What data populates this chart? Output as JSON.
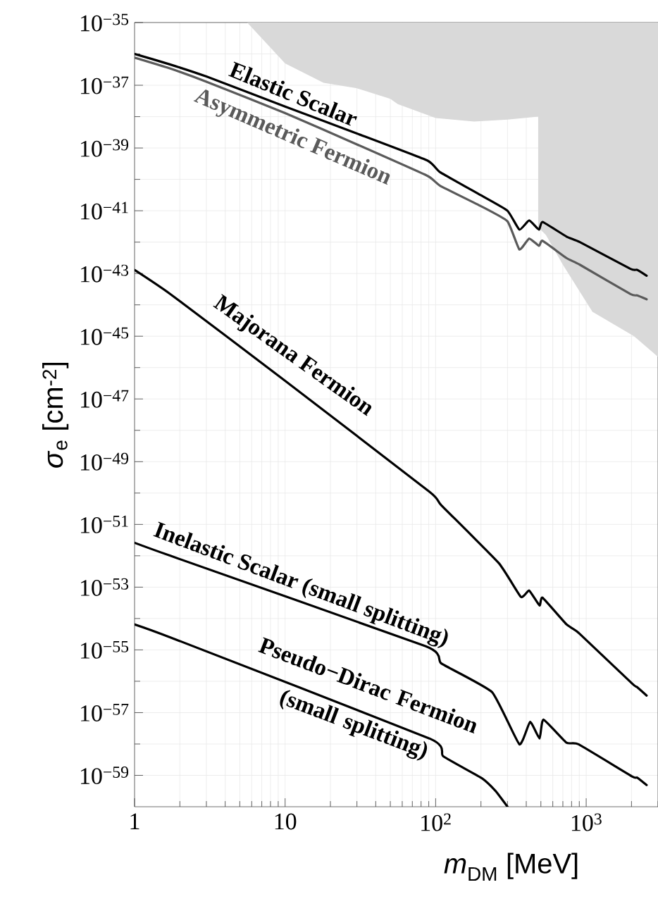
{
  "chart_data": {
    "type": "line",
    "xlabel": "*m*$_{DM}$  [MeV]",
    "ylabel": "*σ*$_{e}$  [cm$^{-2}$]",
    "log": "xy",
    "grid": true,
    "xlim": [
      1,
      3000
    ],
    "ylim": [
      1e-60,
      1e-35
    ],
    "xticks": [
      1,
      10,
      {
        "value": 100,
        "label": "10$^{2}$"
      },
      {
        "value": 1000,
        "label": "10$^{3}$"
      }
    ],
    "yticks": [
      {
        "value": 1e-35,
        "label": "10$^{−35}$"
      },
      {
        "value": 1e-37,
        "label": "10$^{−37}$"
      },
      {
        "value": 1e-39,
        "label": "10$^{−39}$"
      },
      {
        "value": 1e-41,
        "label": "10$^{−41}$"
      },
      {
        "value": 1e-43,
        "label": "10$^{−43}$"
      },
      {
        "value": 1e-45,
        "label": "10$^{−45}$"
      },
      {
        "value": 1e-47,
        "label": "10$^{−47}$"
      },
      {
        "value": 1e-49,
        "label": "10$^{−49}$"
      },
      {
        "value": 1e-51,
        "label": "10$^{−51}$"
      },
      {
        "value": 1e-53,
        "label": "10$^{−53}$"
      },
      {
        "value": 1e-55,
        "label": "10$^{−55}$"
      },
      {
        "value": 1e-57,
        "label": "10$^{−57}$"
      },
      {
        "value": 1e-59,
        "label": "10$^{−59}$"
      }
    ],
    "series": [
      {
        "type": "area",
        "color": "#d9d9d9",
        "x": [
          5.6,
          10,
          18,
          30,
          50,
          56,
          100,
          180,
          300,
          480,
          480,
          540,
          700,
          1100,
          2080,
          3000,
          3000
        ],
        "values": [
          1e-35,
          5e-37,
          1.2e-37,
          8e-38,
          3.7e-38,
          2.5e-38,
          9e-39,
          7e-39,
          8e-39,
          1e-38,
          3e-42,
          1.7e-42,
          1.9e-43,
          6e-45,
          1e-45,
          2.2e-46,
          1e-35
        ]
      },
      {
        "name": "Elastic Scalar",
        "color": "#000000",
        "x": [
          1,
          1.7,
          3,
          10,
          30,
          88,
          107,
          200,
          300,
          360,
          418,
          486,
          513,
          740,
          908,
          1970,
          2180,
          2520
        ],
        "values": [
          1e-36,
          4.7e-37,
          1.9e-37,
          2.1e-38,
          2.9e-39,
          4e-40,
          1.7e-40,
          3.1e-41,
          1e-41,
          2.5e-42,
          4.9e-42,
          2.5e-42,
          4.4e-42,
          1.5e-42,
          1e-42,
          1.4e-43,
          1.3e-43,
          8.5e-44
        ]
      },
      {
        "name": "Asymmetric Fermion",
        "color": "#5a5a5a",
        "x": [
          1,
          1.7,
          3,
          10,
          30,
          88,
          107,
          200,
          300,
          360,
          418,
          486,
          513,
          740,
          908,
          1970,
          2180,
          2520
        ],
        "values": [
          7.6e-37,
          3.5e-37,
          1.3e-37,
          1.3e-38,
          1.3e-39,
          1.3e-40,
          6.3e-41,
          1.4e-41,
          4.6e-42,
          5.8e-43,
          1.3e-42,
          7.6e-43,
          1.1e-42,
          3.1e-43,
          1.9e-43,
          2.2e-44,
          2e-44,
          1.5e-44
        ]
      },
      {
        "name": "Majorana Fermion",
        "color": "#000000",
        "x": [
          1,
          1.73,
          10,
          91,
          109,
          263,
          368,
          418,
          490,
          513,
          740,
          890,
          2030,
          2180,
          2520
        ],
        "values": [
          1.3e-43,
          2.2e-44,
          3.8e-47,
          1.1e-50,
          4.1e-51,
          5.8e-53,
          4.9e-54,
          7.8e-54,
          2.6e-54,
          4.6e-54,
          6.5e-55,
          3.5e-55,
          8.3e-57,
          6.5e-57,
          3.5e-57
        ]
      },
      {
        "name": "Inelastic Scalar (small splitting)",
        "color": "#000000",
        "x": [
          1,
          1.73,
          86,
          109,
          237,
          360,
          424,
          490,
          520,
          740,
          890,
          2030,
          2180,
          2520
        ],
        "values": [
          2.6e-52,
          1e-52,
          1.3e-55,
          3.7e-56,
          4.5e-57,
          9.8e-59,
          5.1e-58,
          1.5e-58,
          6e-58,
          1.1e-58,
          9.8e-59,
          9.1e-60,
          8.5e-60,
          4.9e-60
        ]
      },
      {
        "name": "Pseudo−Dirac Fermion (small splitting)",
        "color": "#000000",
        "x": [
          1,
          1.73,
          91,
          112,
          203,
          250,
          285,
          300
        ],
        "values": [
          6.5e-55,
          2.5e-55,
          1.5e-58,
          4.1e-59,
          8.1e-60,
          3.2e-60,
          1.4e-60,
          1e-60
        ]
      }
    ]
  }
}
